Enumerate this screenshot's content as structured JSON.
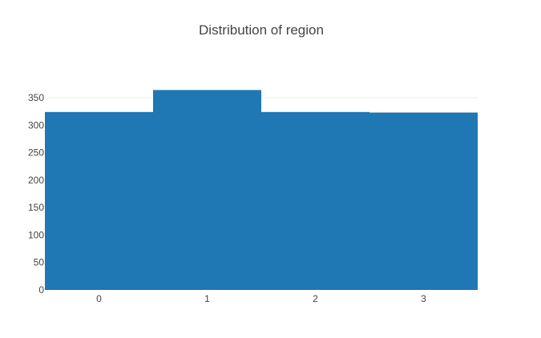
{
  "chart_data": {
    "type": "bar",
    "title": "Distribution of region",
    "xlabel": "",
    "ylabel": "",
    "categories": [
      "0",
      "1",
      "2",
      "3"
    ],
    "values": [
      324,
      364,
      324,
      323
    ],
    "ylim": [
      0,
      385
    ],
    "yticks": [
      0,
      50,
      100,
      150,
      200,
      250,
      300,
      350
    ],
    "grid": true,
    "legend": "none",
    "bar_color": "#1f77b4",
    "grid_color": "#eeeeee"
  }
}
